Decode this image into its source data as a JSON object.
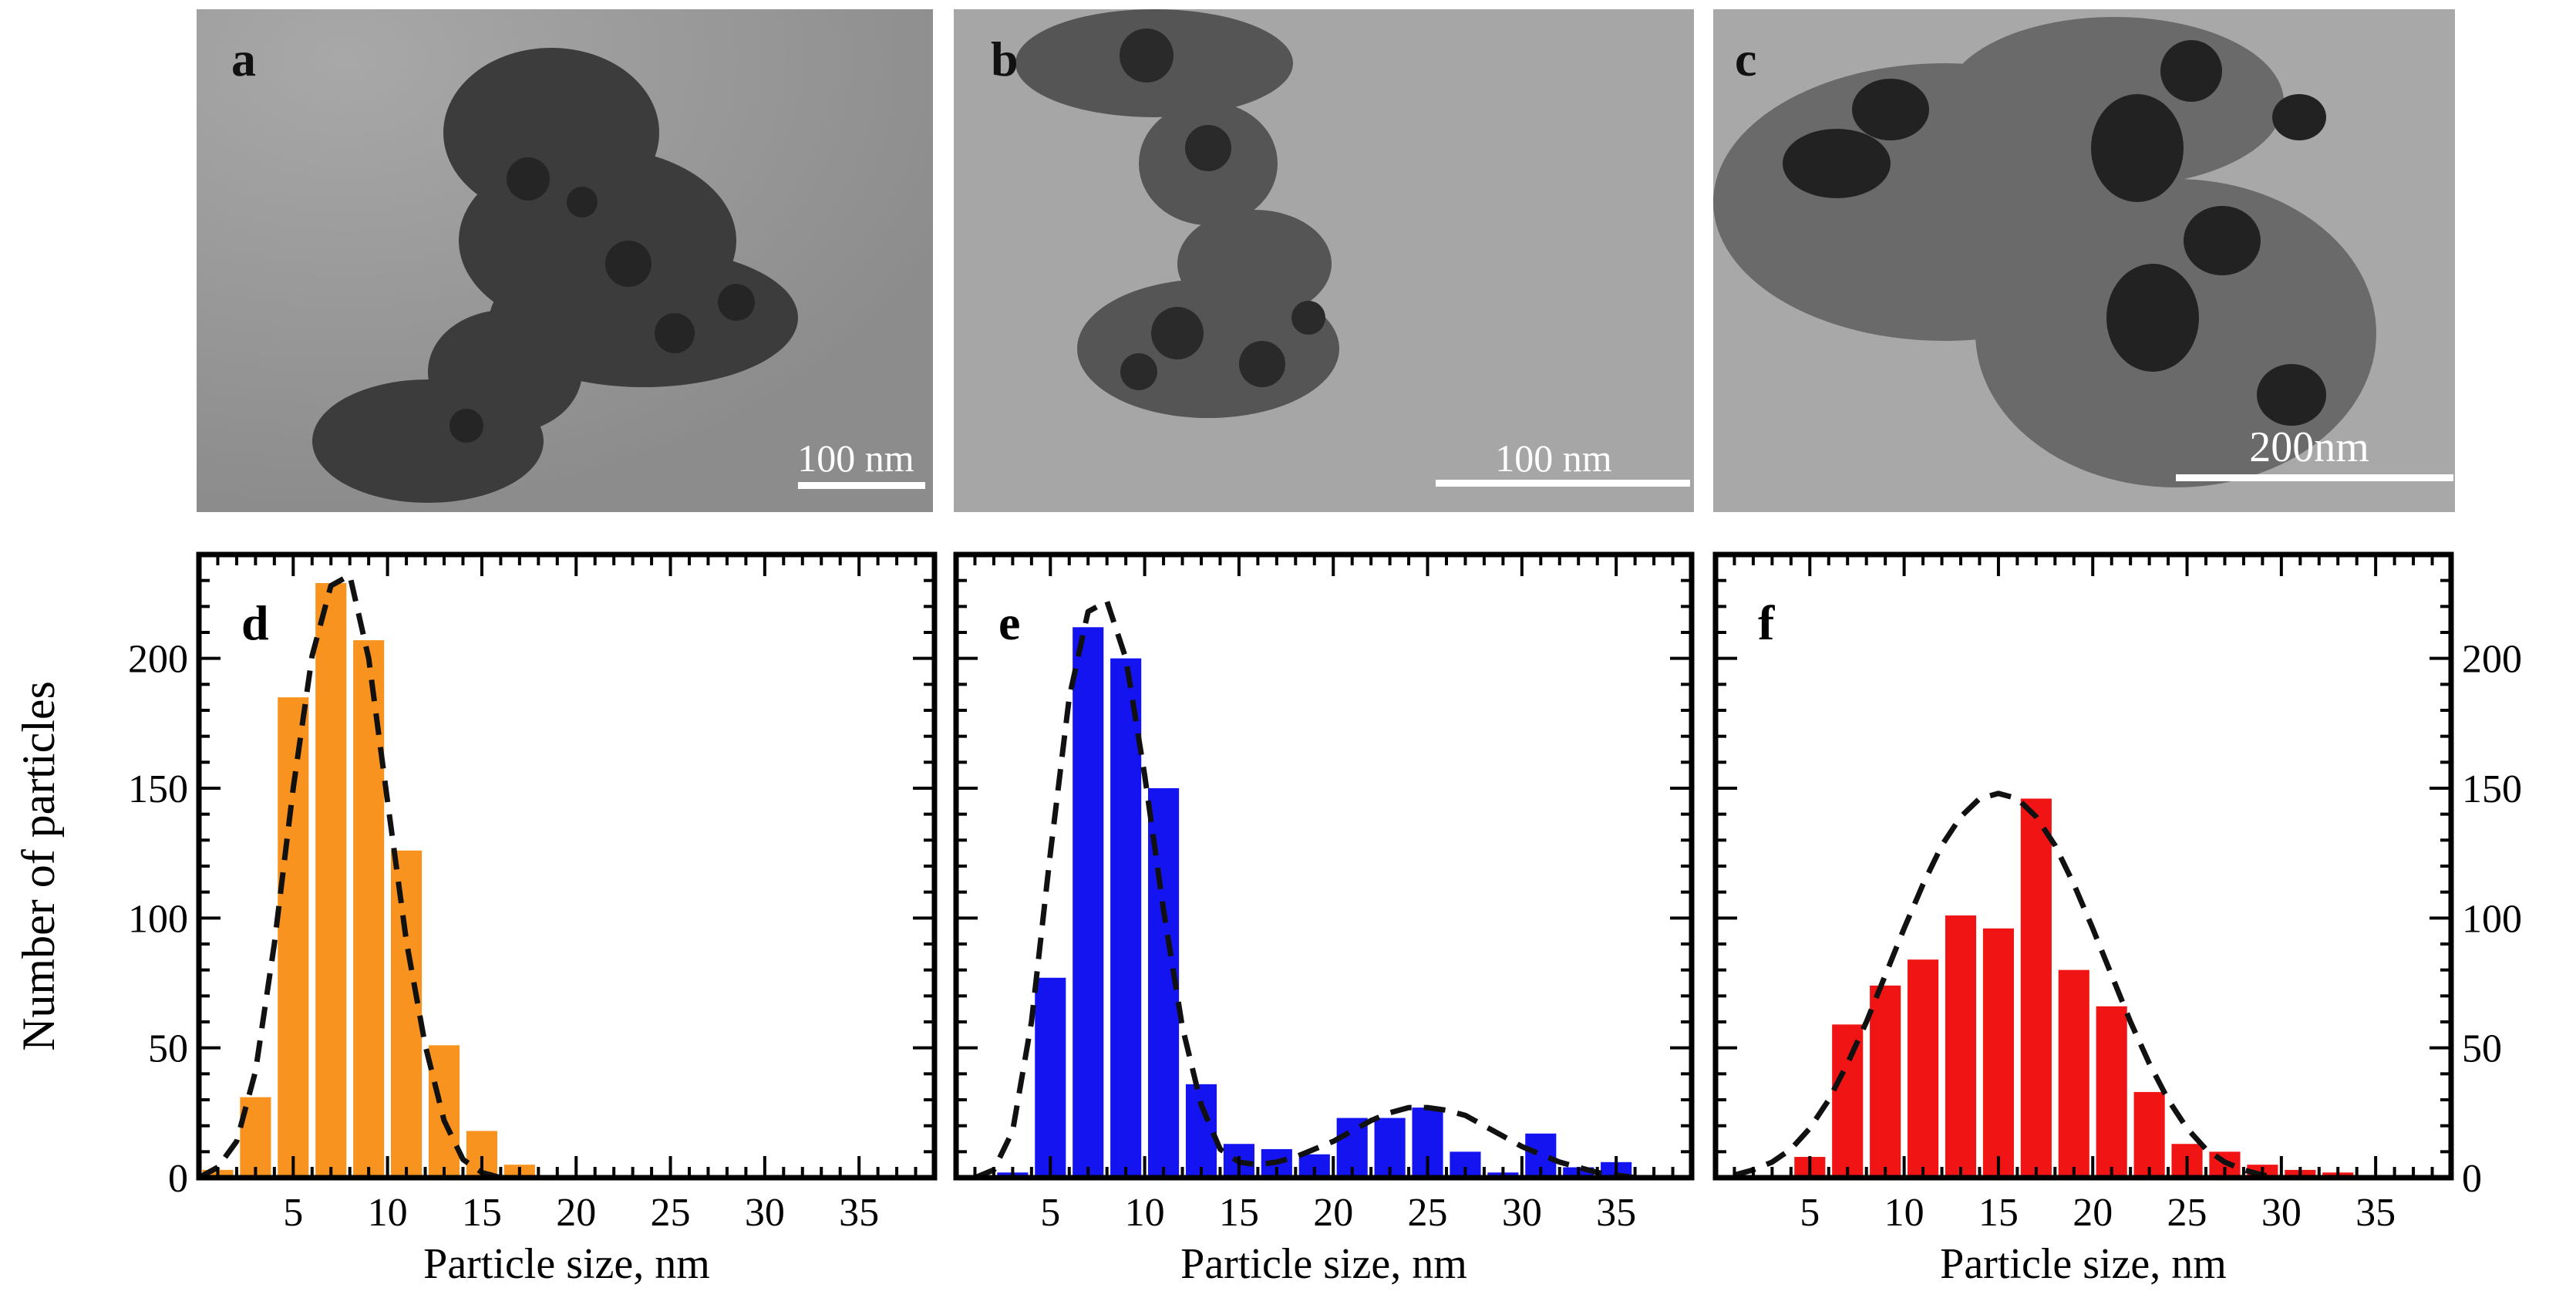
{
  "tem_images": [
    {
      "panel": "a",
      "scale_text": "100 nm"
    },
    {
      "panel": "b",
      "scale_text": "100 nm"
    },
    {
      "panel": "c",
      "scale_text": "200nm"
    }
  ],
  "colors": {
    "d": "#f7931e",
    "e": "#1414f0",
    "f": "#f01414",
    "fit": "#111111"
  },
  "y_axis_label": "Number of particles",
  "chart_data": [
    {
      "panel": "d",
      "type": "bar",
      "xlabel": "Particle size, nm",
      "ylabel": "Number of particles",
      "xlim": [
        0,
        39
      ],
      "ylim": [
        0,
        240
      ],
      "xticks": [
        5,
        10,
        15,
        20,
        25,
        30,
        35
      ],
      "yticks": [
        0,
        50,
        100,
        150,
        200
      ],
      "yticks_side": "left",
      "bars": {
        "x": [
          1,
          3,
          5,
          7,
          9,
          11,
          13,
          15,
          17,
          19,
          21
        ],
        "values": [
          3,
          31,
          185,
          229,
          207,
          126,
          51,
          18,
          5,
          1,
          1
        ]
      },
      "fit_curve": {
        "style": "dashed",
        "x": [
          0,
          1,
          2,
          3,
          4,
          5,
          6,
          7,
          8,
          9,
          10,
          11,
          12,
          13,
          14,
          15,
          16,
          17,
          18,
          19,
          20,
          21,
          22,
          23
        ],
        "y": [
          0,
          4,
          14,
          41,
          90,
          150,
          201,
          228,
          232,
          200,
          145,
          91,
          51,
          22,
          7,
          2,
          0,
          0,
          0,
          0,
          0,
          0,
          0,
          0
        ]
      }
    },
    {
      "panel": "e",
      "type": "bar",
      "xlabel": "Particle size, nm",
      "ylabel": "Number of particles",
      "xlim": [
        0,
        39
      ],
      "ylim": [
        0,
        240
      ],
      "xticks": [
        5,
        10,
        15,
        20,
        25,
        30,
        35
      ],
      "yticks": [
        0,
        50,
        100,
        150,
        200
      ],
      "yticks_side": "none",
      "bars": {
        "x": [
          3,
          5,
          7,
          9,
          11,
          13,
          15,
          17,
          19,
          21,
          23,
          25,
          27,
          29,
          31,
          33,
          35
        ],
        "values": [
          2,
          77,
          212,
          200,
          150,
          36,
          13,
          11,
          9,
          23,
          23,
          27,
          10,
          2,
          17,
          4,
          6
        ]
      },
      "fit_curve": {
        "style": "dashed",
        "x": [
          1,
          2,
          3,
          4,
          5,
          6,
          7,
          8,
          9,
          10,
          11,
          12,
          13,
          14,
          15,
          16,
          17,
          18,
          19,
          20,
          21,
          22,
          23,
          24,
          25,
          26,
          27,
          28,
          29,
          30,
          31,
          32,
          33,
          34,
          35,
          36,
          37,
          38
        ],
        "y": [
          0,
          3,
          18,
          60,
          125,
          185,
          218,
          222,
          200,
          155,
          103,
          58,
          28,
          11,
          6,
          5,
          6,
          8,
          11,
          14,
          18,
          22,
          25,
          27,
          27,
          26,
          24,
          20,
          16,
          12,
          9,
          6,
          4,
          2,
          1,
          0,
          0,
          0
        ]
      }
    },
    {
      "panel": "f",
      "type": "bar",
      "xlabel": "Particle size, nm",
      "ylabel": "Number of particles",
      "xlim": [
        0,
        39
      ],
      "ylim": [
        0,
        240
      ],
      "xticks": [
        5,
        10,
        15,
        20,
        25,
        30,
        35
      ],
      "yticks": [
        0,
        50,
        100,
        150,
        200
      ],
      "yticks_side": "right",
      "bars": {
        "x": [
          5,
          7,
          9,
          11,
          13,
          15,
          17,
          19,
          21,
          23,
          25,
          27,
          29,
          31,
          33
        ],
        "values": [
          8,
          59,
          74,
          84,
          101,
          96,
          146,
          80,
          66,
          33,
          13,
          10,
          5,
          3,
          2
        ]
      },
      "fit_curve": {
        "style": "dashed",
        "x": [
          1,
          2,
          3,
          4,
          5,
          6,
          7,
          8,
          9,
          10,
          11,
          12,
          13,
          14,
          15,
          16,
          17,
          18,
          19,
          20,
          21,
          22,
          23,
          24,
          25,
          26,
          27,
          28,
          29,
          30,
          31,
          32,
          33
        ],
        "y": [
          1,
          3,
          6,
          11,
          19,
          30,
          44,
          60,
          78,
          96,
          113,
          128,
          139,
          146,
          148,
          146,
          139,
          128,
          113,
          96,
          78,
          60,
          44,
          30,
          19,
          11,
          6,
          3,
          1,
          0,
          0,
          0,
          0
        ]
      }
    }
  ]
}
